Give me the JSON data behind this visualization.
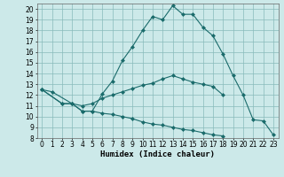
{
  "xlabel": "Humidex (Indice chaleur)",
  "background_color": "#cce9e9",
  "grid_color": "#88bbbb",
  "line_color": "#1a6b6b",
  "xdata": [
    0,
    1,
    2,
    3,
    4,
    5,
    6,
    7,
    8,
    9,
    10,
    11,
    12,
    13,
    14,
    15,
    16,
    17,
    18,
    19,
    20,
    21,
    22,
    23
  ],
  "series1": [
    12.5,
    12.3,
    null,
    11.2,
    10.5,
    10.5,
    12.1,
    13.3,
    15.2,
    16.5,
    18.0,
    19.3,
    19.0,
    20.3,
    19.5,
    19.5,
    18.3,
    17.5,
    15.8,
    13.8,
    12.0,
    9.7,
    9.6,
    8.3
  ],
  "series2": [
    12.5,
    null,
    11.2,
    11.2,
    11.0,
    11.2,
    11.7,
    12.0,
    12.3,
    12.6,
    12.9,
    13.1,
    13.5,
    13.8,
    13.5,
    13.2,
    13.0,
    12.8,
    12.0,
    null,
    null,
    null,
    null,
    null
  ],
  "series3": [
    12.5,
    null,
    11.2,
    11.2,
    10.5,
    10.5,
    10.3,
    10.2,
    10.0,
    9.8,
    9.5,
    9.3,
    9.2,
    9.0,
    8.8,
    8.7,
    8.5,
    8.3,
    8.2,
    null,
    null,
    null,
    null,
    null
  ],
  "xlim": [
    -0.5,
    23.5
  ],
  "ylim": [
    8,
    20.5
  ],
  "yticks": [
    8,
    9,
    10,
    11,
    12,
    13,
    14,
    15,
    16,
    17,
    18,
    19,
    20
  ],
  "xticks": [
    0,
    1,
    2,
    3,
    4,
    5,
    6,
    7,
    8,
    9,
    10,
    11,
    12,
    13,
    14,
    15,
    16,
    17,
    18,
    19,
    20,
    21,
    22,
    23
  ],
  "tick_fontsize": 5.5,
  "label_fontsize": 6.5
}
